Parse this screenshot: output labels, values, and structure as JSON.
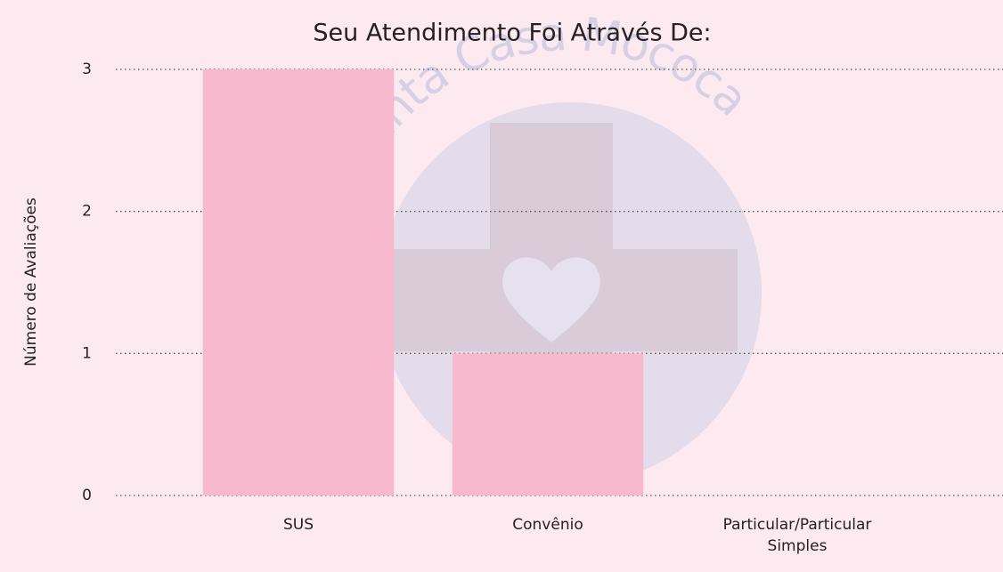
{
  "chart_data": {
    "type": "bar",
    "title": "Seu Atendimento Foi Através De:",
    "y_label": "Número de Avaliações",
    "watermark": "Santa Casa Mococa",
    "categories": [
      "SUS",
      "Convênio",
      "Particular/Particular Simples"
    ],
    "values": [
      3,
      1,
      0
    ],
    "color": "#f8b9cf",
    "ylim": [
      0,
      3
    ],
    "yticks": [
      0,
      1,
      2,
      3
    ],
    "grid": true
  }
}
